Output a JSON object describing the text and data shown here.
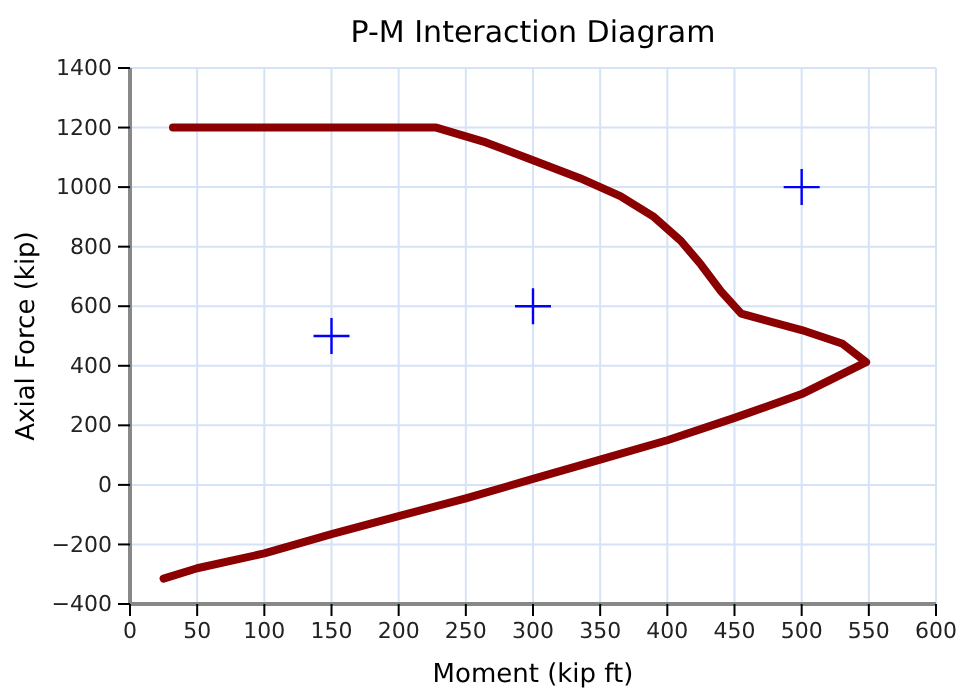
{
  "chart_data": {
    "type": "line",
    "title": "P-M Interaction Diagram",
    "xlabel": "Moment (kip ft)",
    "ylabel": "Axial Force (kip)",
    "xlim": [
      0,
      600
    ],
    "xticks": [
      0,
      50,
      100,
      150,
      200,
      250,
      300,
      350,
      400,
      450,
      500,
      550,
      600
    ],
    "ylim": [
      -400,
      1400
    ],
    "yticks": [
      {
        "value": -400,
        "label": "−400"
      },
      {
        "value": -200,
        "label": "−200"
      },
      0,
      200,
      400,
      600,
      800,
      1000,
      1200,
      1400
    ],
    "grid": true,
    "series": [
      {
        "color": "#8b0000",
        "marker": "none",
        "x": [
          32,
          228,
          265,
          300,
          335,
          365,
          390,
          410,
          425,
          440,
          455,
          500,
          530,
          548,
          500,
          450,
          400,
          350,
          300,
          250,
          200,
          150,
          100,
          50,
          25
        ],
        "values": [
          1200,
          1200,
          1150,
          1090,
          1030,
          970,
          900,
          820,
          740,
          650,
          575,
          520,
          475,
          412,
          305,
          225,
          150,
          85,
          20,
          -45,
          -105,
          -165,
          -230,
          -280,
          -315
        ]
      },
      {
        "type": "scatter",
        "color": "#0000ff",
        "marker": "cross",
        "x": [
          150,
          300,
          500
        ],
        "values": [
          500,
          600,
          1000
        ]
      }
    ]
  }
}
